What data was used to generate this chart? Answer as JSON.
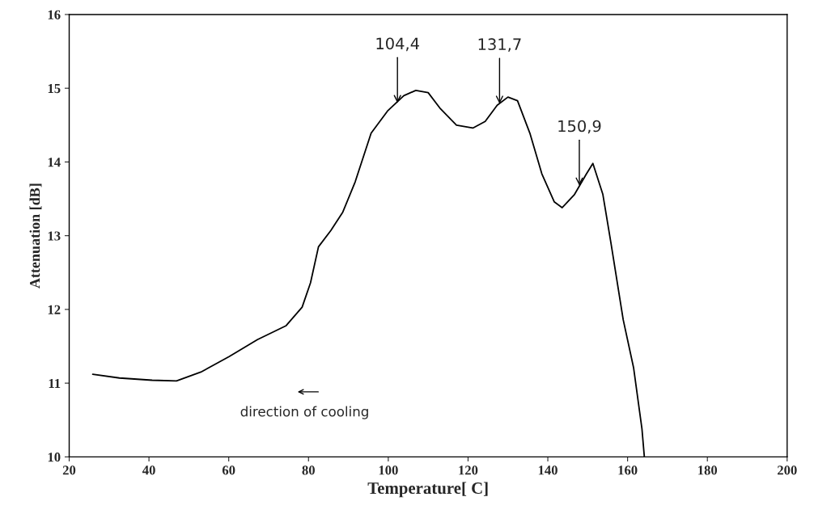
{
  "chart_data": {
    "type": "line",
    "xlabel": "Temperature[ C]",
    "ylabel": "Attenuation [dB]",
    "x": [
      25.9,
      32.6,
      40.8,
      46.9,
      53,
      60.1,
      67.2,
      74.4,
      78.4,
      80.5,
      82.5,
      85.6,
      88.6,
      91.7,
      95.7,
      99.8,
      103.9,
      106.9,
      110,
      113.1,
      117.1,
      121.2,
      124.3,
      127.3,
      130,
      132.4,
      135.5,
      138.5,
      141.6,
      143.6,
      146.7,
      149.7,
      151.3,
      153.8,
      155.8,
      158.9,
      161.5,
      163.6,
      164.2
    ],
    "series": [
      {
        "color": "#000000",
        "values": [
          11.12,
          11.07,
          11.04,
          11.03,
          11.15,
          11.36,
          11.59,
          11.78,
          12.03,
          12.36,
          12.85,
          13.07,
          13.32,
          13.73,
          14.39,
          14.69,
          14.9,
          14.97,
          14.94,
          14.72,
          14.5,
          14.46,
          14.55,
          14.77,
          14.88,
          14.83,
          14.39,
          13.84,
          13.46,
          13.38,
          13.56,
          13.84,
          13.98,
          13.56,
          12.91,
          11.86,
          11.21,
          10.38,
          10.0
        ]
      }
    ],
    "annotations": [
      {
        "text": "104,4",
        "x": 102.3,
        "y": 14.8
      },
      {
        "text": "131,7",
        "x": 127.9,
        "y": 14.79
      },
      {
        "text": "150,9",
        "x": 147.9,
        "y": 13.68
      },
      "direction of cooling"
    ],
    "xlim": [
      20,
      200
    ],
    "xticks": [
      20,
      40,
      60,
      80,
      100,
      120,
      140,
      160,
      180,
      200
    ],
    "ylim": [
      10,
      16
    ],
    "yticks": [
      10,
      11,
      12,
      13,
      14,
      15,
      16
    ],
    "grid": false,
    "legend": false,
    "marker": "none",
    "line_style": "solid"
  }
}
